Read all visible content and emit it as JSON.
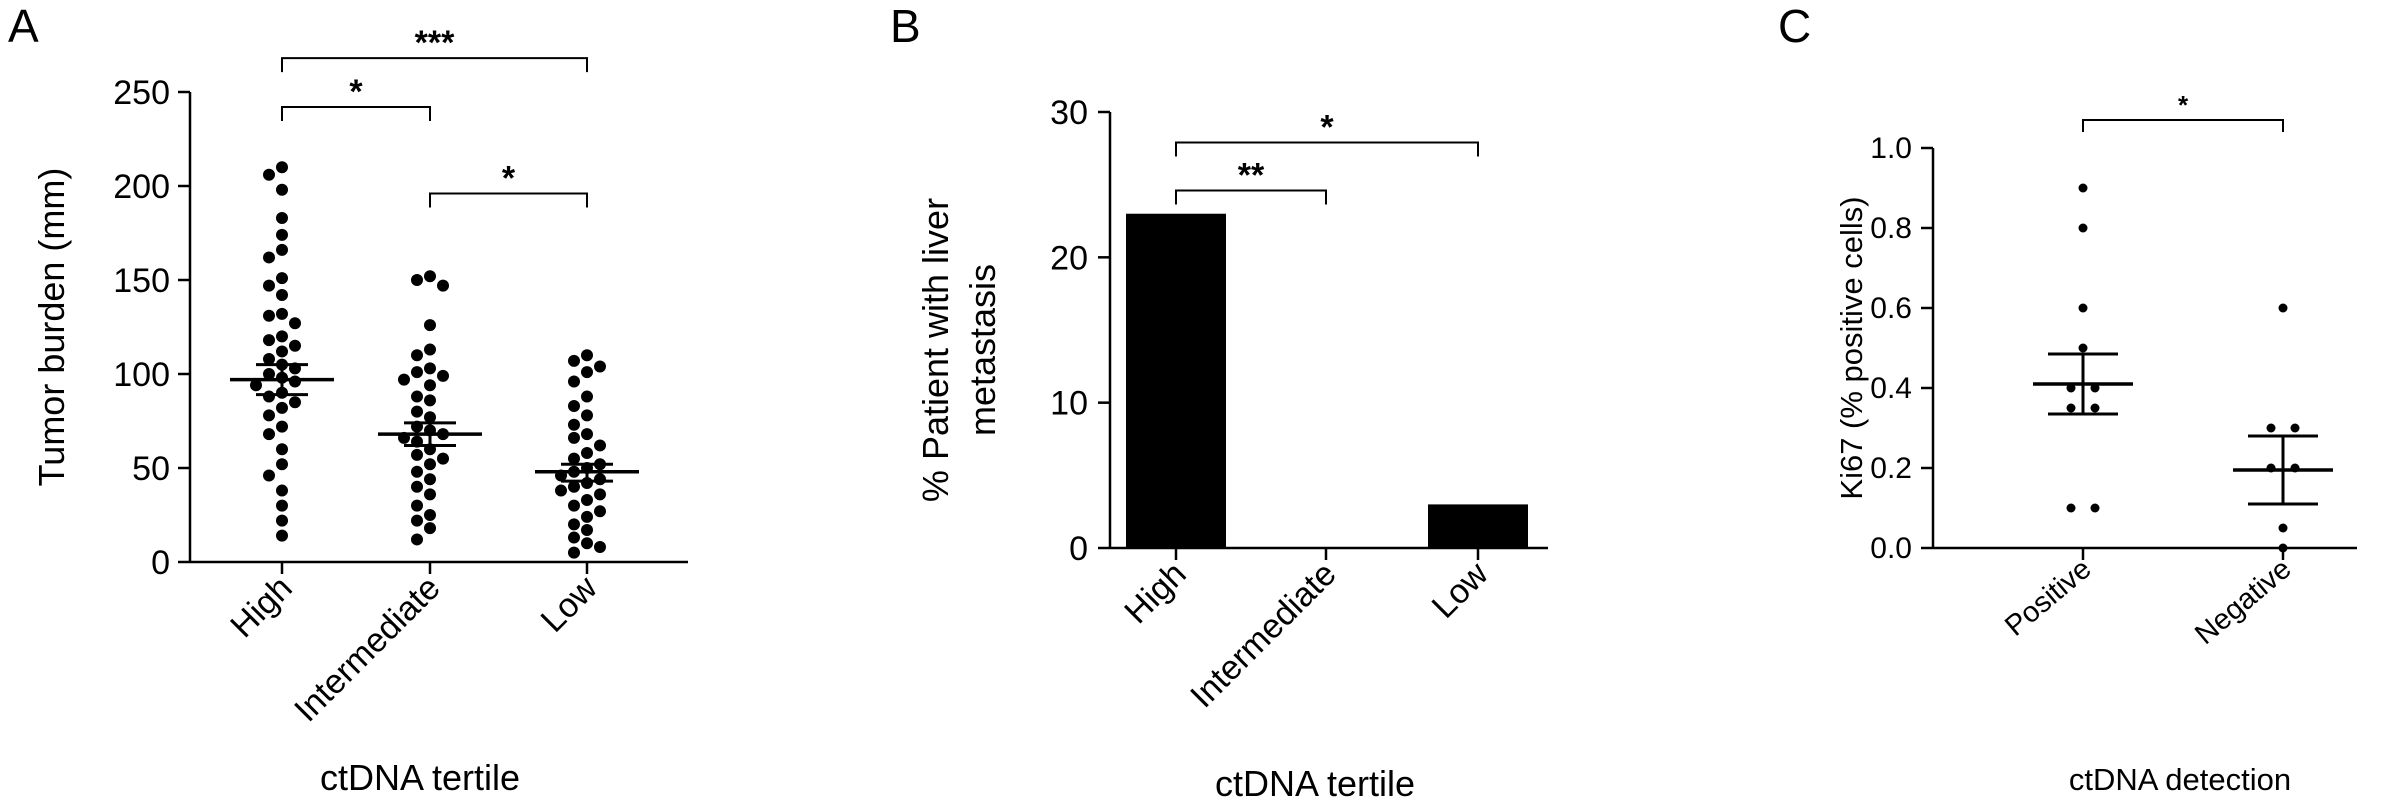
{
  "chart_data": [
    {
      "panel": "A",
      "type": "scatter",
      "xlabel": "ctDNA tertile",
      "ylabel": "Tumor burden (mm)",
      "ylim": [
        0,
        250
      ],
      "yticks": [
        0,
        50,
        100,
        150,
        200,
        250
      ],
      "categories": [
        "High",
        "Intermediate",
        "Low"
      ],
      "groups": [
        {
          "category": "High",
          "mean": 97,
          "sem_upper": 105,
          "sem_lower": 89,
          "values": [
            210,
            206,
            198,
            183,
            174,
            166,
            162,
            151,
            147,
            142,
            132,
            131,
            127,
            120,
            118,
            115,
            112,
            108,
            105,
            103,
            100,
            98,
            96,
            94,
            90,
            88,
            85,
            82,
            78,
            72,
            68,
            60,
            52,
            46,
            38,
            30,
            22,
            14
          ]
        },
        {
          "category": "Intermediate",
          "mean": 68,
          "sem_upper": 74,
          "sem_lower": 62,
          "values": [
            152,
            150,
            147,
            126,
            113,
            110,
            103,
            101,
            99,
            97,
            94,
            88,
            86,
            80,
            77,
            72,
            70,
            68,
            66,
            64,
            60,
            57,
            55,
            52,
            48,
            44,
            40,
            36,
            30,
            25,
            22,
            18,
            12
          ]
        },
        {
          "category": "Low",
          "mean": 48,
          "sem_upper": 52,
          "sem_lower": 43,
          "values": [
            110,
            107,
            104,
            101,
            96,
            88,
            83,
            78,
            73,
            68,
            66,
            62,
            58,
            55,
            52,
            50,
            48,
            46,
            44,
            42,
            40,
            38,
            36,
            33,
            30,
            27,
            24,
            20,
            17,
            13,
            10,
            8,
            5
          ]
        }
      ],
      "significance": [
        {
          "from": "High",
          "to": "Intermediate",
          "label": "*",
          "y": 242
        },
        {
          "from": "High",
          "to": "Low",
          "label": "***",
          "y": 268
        },
        {
          "from": "Intermediate",
          "to": "Low",
          "label": "*",
          "y": 196
        }
      ]
    },
    {
      "panel": "B",
      "type": "bar",
      "xlabel": "ctDNA tertile",
      "ylabel_lines": [
        "% Patient with liver",
        "metastasis"
      ],
      "ylim": [
        0,
        30
      ],
      "yticks": [
        0,
        10,
        20,
        30
      ],
      "categories": [
        "High",
        "Intermediate",
        "Low"
      ],
      "values": [
        23,
        0,
        3
      ],
      "bar_color": "#000000",
      "significance": [
        {
          "from": "High",
          "to": "Intermediate",
          "label": "**",
          "y": 24.6
        },
        {
          "from": "High",
          "to": "Low",
          "label": "*",
          "y": 27.9
        }
      ]
    },
    {
      "panel": "C",
      "type": "scatter",
      "xlabel": "ctDNA detection",
      "ylabel": "Ki67 (% positive cells)",
      "ylim": [
        0,
        1.0
      ],
      "yticks": [
        "0.0",
        "0.2",
        "0.4",
        "0.6",
        "0.8",
        "1.0"
      ],
      "categories": [
        "Positive",
        "Negative"
      ],
      "groups": [
        {
          "category": "Positive",
          "mean": 0.41,
          "sem_upper": 0.485,
          "sem_lower": 0.335,
          "points": [
            [
              0,
              0.9
            ],
            [
              0,
              0.8
            ],
            [
              0,
              0.6
            ],
            [
              0,
              0.5
            ],
            [
              -1,
              0.4
            ],
            [
              1,
              0.4
            ],
            [
              -1,
              0.35
            ],
            [
              1,
              0.35
            ],
            [
              -1,
              0.1
            ],
            [
              1,
              0.1
            ]
          ]
        },
        {
          "category": "Negative",
          "mean": 0.195,
          "sem_upper": 0.28,
          "sem_lower": 0.11,
          "points": [
            [
              0,
              0.6
            ],
            [
              -1,
              0.3
            ],
            [
              1,
              0.3
            ],
            [
              -1,
              0.2
            ],
            [
              1,
              0.2
            ],
            [
              0,
              0.05
            ],
            [
              0,
              0.0
            ]
          ]
        }
      ],
      "significance": [
        {
          "from": "Positive",
          "to": "Negative",
          "label": "*",
          "y": 1.07
        }
      ]
    }
  ]
}
